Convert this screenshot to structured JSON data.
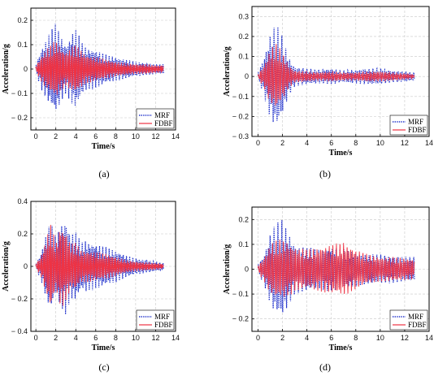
{
  "chart_data": [
    {
      "id": "a",
      "type": "line",
      "caption": "(a)",
      "xlabel": "Time/s",
      "ylabel": "Acceleration/g",
      "xlim": [
        -0.5,
        14
      ],
      "ylim": [
        -0.25,
        0.25
      ],
      "xticks": [
        0,
        2,
        4,
        6,
        8,
        10,
        12,
        14
      ],
      "yticks": [
        -0.2,
        -0.1,
        0,
        0.1,
        0.2
      ],
      "ytick_labels": [
        "− 0.2",
        "− 0.1",
        "0",
        "0.1",
        "0.2"
      ],
      "grid": true,
      "legend_position": "bottom-right",
      "series": [
        {
          "name": "MRF",
          "style": "dotted",
          "color": "#2233cc",
          "t_end": 12.8,
          "envelope": [
            [
              0,
              0.02
            ],
            [
              0.5,
              0.08
            ],
            [
              1,
              0.12
            ],
            [
              1.5,
              0.16
            ],
            [
              2,
              0.19
            ],
            [
              2.5,
              0.14
            ],
            [
              3,
              0.1
            ],
            [
              3.5,
              0.14
            ],
            [
              4,
              0.17
            ],
            [
              4.5,
              0.12
            ],
            [
              5,
              0.09
            ],
            [
              6,
              0.08
            ],
            [
              7,
              0.06
            ],
            [
              8,
              0.05
            ],
            [
              9,
              0.04
            ],
            [
              10,
              0.03
            ],
            [
              11,
              0.025
            ],
            [
              12,
              0.02
            ],
            [
              12.8,
              0.02
            ]
          ]
        },
        {
          "name": "FDBF",
          "style": "solid",
          "color": "#ee3344",
          "t_end": 12.8,
          "envelope": [
            [
              0,
              0.01
            ],
            [
              0.5,
              0.05
            ],
            [
              1,
              0.08
            ],
            [
              1.5,
              0.1
            ],
            [
              2,
              0.12
            ],
            [
              2.5,
              0.09
            ],
            [
              3,
              0.07
            ],
            [
              3.5,
              0.09
            ],
            [
              4,
              0.1
            ],
            [
              4.5,
              0.08
            ],
            [
              5,
              0.06
            ],
            [
              6,
              0.05
            ],
            [
              7,
              0.04
            ],
            [
              8,
              0.03
            ],
            [
              9,
              0.025
            ],
            [
              10,
              0.02
            ],
            [
              11,
              0.02
            ],
            [
              12,
              0.015
            ],
            [
              12.8,
              0.015
            ]
          ]
        }
      ]
    },
    {
      "id": "b",
      "type": "line",
      "caption": "(b)",
      "xlabel": "Time/s",
      "ylabel": "Acceleration/g",
      "xlim": [
        -0.5,
        14
      ],
      "ylim": [
        -0.3,
        0.35
      ],
      "xticks": [
        0,
        2,
        4,
        6,
        8,
        10,
        12,
        14
      ],
      "yticks": [
        -0.3,
        -0.2,
        -0.1,
        0,
        0.1,
        0.2,
        0.3
      ],
      "ytick_labels": [
        "− 0.3",
        "− 0.2",
        "− 0.1",
        "0",
        "0.1",
        "0.2",
        "0.3"
      ],
      "grid": true,
      "legend_position": "bottom-right",
      "series": [
        {
          "name": "MRF",
          "style": "dotted",
          "color": "#2233cc",
          "t_end": 12.8,
          "envelope": [
            [
              0,
              0.02
            ],
            [
              0.5,
              0.1
            ],
            [
              1,
              0.22
            ],
            [
              1.5,
              0.27
            ],
            [
              2,
              0.2
            ],
            [
              2.5,
              0.1
            ],
            [
              3,
              0.05
            ],
            [
              4,
              0.04
            ],
            [
              5,
              0.035
            ],
            [
              6,
              0.04
            ],
            [
              7,
              0.03
            ],
            [
              8,
              0.035
            ],
            [
              9,
              0.04
            ],
            [
              10,
              0.04
            ],
            [
              11,
              0.03
            ],
            [
              12,
              0.025
            ],
            [
              12.8,
              0.02
            ]
          ]
        },
        {
          "name": "FDBF",
          "style": "solid",
          "color": "#ee3344",
          "t_end": 12.8,
          "envelope": [
            [
              0,
              0.01
            ],
            [
              0.5,
              0.06
            ],
            [
              1,
              0.14
            ],
            [
              1.5,
              0.17
            ],
            [
              2,
              0.12
            ],
            [
              2.5,
              0.06
            ],
            [
              3,
              0.03
            ],
            [
              4,
              0.025
            ],
            [
              5,
              0.02
            ],
            [
              6,
              0.025
            ],
            [
              7,
              0.02
            ],
            [
              8,
              0.02
            ],
            [
              9,
              0.025
            ],
            [
              10,
              0.025
            ],
            [
              11,
              0.02
            ],
            [
              12,
              0.015
            ],
            [
              12.8,
              0.01
            ]
          ]
        }
      ]
    },
    {
      "id": "c",
      "type": "line",
      "caption": "(c)",
      "xlabel": "Time/s",
      "ylabel": "Acceleration/g",
      "xlim": [
        -0.5,
        14
      ],
      "ylim": [
        -0.4,
        0.4
      ],
      "xticks": [
        0,
        2,
        4,
        6,
        8,
        10,
        12,
        14
      ],
      "yticks": [
        -0.4,
        -0.2,
        0,
        0.2,
        0.4
      ],
      "ytick_labels": [
        "− 0.4",
        "− 0.2",
        "0",
        "0.2",
        "0.4"
      ],
      "grid": true,
      "legend_position": "bottom-right",
      "series": [
        {
          "name": "MRF",
          "style": "dotted",
          "color": "#2233cc",
          "t_end": 12.8,
          "envelope": [
            [
              0,
              0.02
            ],
            [
              0.5,
              0.08
            ],
            [
              1,
              0.2
            ],
            [
              1.5,
              0.28
            ],
            [
              2,
              0.18
            ],
            [
              2.5,
              0.26
            ],
            [
              3,
              0.3
            ],
            [
              3.5,
              0.2
            ],
            [
              4,
              0.22
            ],
            [
              4.5,
              0.15
            ],
            [
              5,
              0.16
            ],
            [
              6,
              0.14
            ],
            [
              7,
              0.12
            ],
            [
              8,
              0.1
            ],
            [
              9,
              0.07
            ],
            [
              10,
              0.05
            ],
            [
              11,
              0.04
            ],
            [
              12,
              0.03
            ],
            [
              12.8,
              0.02
            ]
          ]
        },
        {
          "name": "FDBF",
          "style": "solid",
          "color": "#ee3344",
          "t_end": 12.8,
          "envelope": [
            [
              0,
              0.015
            ],
            [
              0.5,
              0.06
            ],
            [
              1,
              0.16
            ],
            [
              1.5,
              0.27
            ],
            [
              2,
              0.14
            ],
            [
              2.5,
              0.26
            ],
            [
              3,
              0.22
            ],
            [
              3.5,
              0.14
            ],
            [
              4,
              0.15
            ],
            [
              4.5,
              0.1
            ],
            [
              5,
              0.1
            ],
            [
              6,
              0.09
            ],
            [
              7,
              0.08
            ],
            [
              8,
              0.06
            ],
            [
              9,
              0.04
            ],
            [
              10,
              0.03
            ],
            [
              11,
              0.025
            ],
            [
              12,
              0.02
            ],
            [
              12.8,
              0.015
            ]
          ]
        }
      ]
    },
    {
      "id": "d",
      "type": "line",
      "caption": "(d)",
      "xlabel": "Time/s",
      "ylabel": "Acceleration/g",
      "xlim": [
        -0.5,
        14
      ],
      "ylim": [
        -0.25,
        0.25
      ],
      "xticks": [
        0,
        2,
        4,
        6,
        8,
        10,
        12,
        14
      ],
      "yticks": [
        -0.2,
        -0.1,
        0,
        0.1,
        0.2
      ],
      "ytick_labels": [
        "− 0.2",
        "− 0.1",
        "0",
        "0.1",
        "0.2"
      ],
      "grid": true,
      "legend_position": "bottom-right",
      "series": [
        {
          "name": "MRF",
          "style": "dotted",
          "color": "#2233cc",
          "t_end": 12.8,
          "envelope": [
            [
              0,
              0.02
            ],
            [
              0.5,
              0.06
            ],
            [
              1,
              0.15
            ],
            [
              1.5,
              0.19
            ],
            [
              2,
              0.2
            ],
            [
              2.5,
              0.15
            ],
            [
              3,
              0.1
            ],
            [
              4,
              0.09
            ],
            [
              5,
              0.08
            ],
            [
              6,
              0.09
            ],
            [
              7,
              0.08
            ],
            [
              8,
              0.07
            ],
            [
              9,
              0.06
            ],
            [
              10,
              0.06
            ],
            [
              11,
              0.055
            ],
            [
              12,
              0.05
            ],
            [
              12.8,
              0.05
            ]
          ]
        },
        {
          "name": "FDBF",
          "style": "solid",
          "color": "#ee3344",
          "t_end": 12.8,
          "envelope": [
            [
              0,
              0.015
            ],
            [
              0.5,
              0.05
            ],
            [
              1,
              0.1
            ],
            [
              1.5,
              0.12
            ],
            [
              2,
              0.12
            ],
            [
              2.5,
              0.11
            ],
            [
              3,
              0.09
            ],
            [
              4,
              0.08
            ],
            [
              5,
              0.09
            ],
            [
              6,
              0.1
            ],
            [
              7,
              0.11
            ],
            [
              8,
              0.08
            ],
            [
              9,
              0.06
            ],
            [
              10,
              0.05
            ],
            [
              11,
              0.05
            ],
            [
              12,
              0.045
            ],
            [
              12.8,
              0.04
            ]
          ]
        }
      ]
    }
  ]
}
